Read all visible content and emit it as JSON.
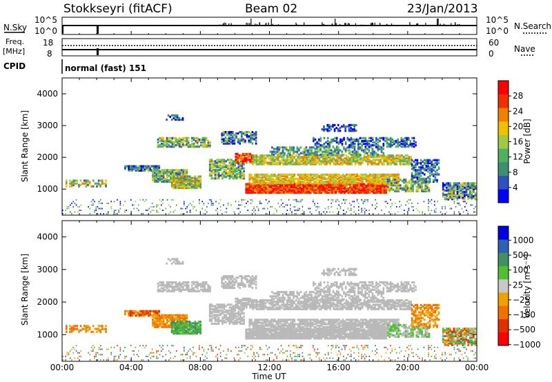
{
  "header": {
    "station": "Stokkseyri (fitACF)",
    "beam": "Beam 02",
    "date": "23/Jan/2013"
  },
  "strips": {
    "nsky_label": "N.Sky",
    "nsky_top": "10^5",
    "nsky_bottom": "10^0",
    "nsearch_label": "N.Search",
    "nsearch_top": "10^5",
    "nsearch_bottom": "10^0",
    "freq_label_1": "Freq.",
    "freq_label_2": "[MHz]",
    "freq_top": "18",
    "freq_bottom": "8",
    "nave_label": "Nave",
    "nave_top": "60",
    "nave_bottom": "0",
    "cpid_label": "CPID",
    "cpid_text": "normal (fast) 151"
  },
  "colors": {
    "power_scale": [
      "#0000ff",
      "#3050c0",
      "#3c9070",
      "#50b060",
      "#a0c840",
      "#f0c000",
      "#f08000",
      "#f03000",
      "#ff0000"
    ],
    "velocity_scale": [
      "#ff0000",
      "#e03000",
      "#f07000",
      "#f0a000",
      "#c8c8c8",
      "#50c030",
      "#409060",
      "#3060b0",
      "#0000e0"
    ],
    "ground_scatter": "#b8b8b8"
  },
  "chart_data": [
    {
      "type": "heatmap",
      "quantity": "power",
      "xlabel": "",
      "ylabel": "Slant Range [km]",
      "ylim": [
        180,
        4500
      ],
      "xlim": [
        0,
        24
      ],
      "y_ticks": [
        "1000",
        "2000",
        "3000",
        "4000"
      ],
      "colorbar_label": "Power [dB]",
      "colorbar_ticks": [
        "4",
        "8",
        "12",
        "16",
        "20",
        "24",
        "28"
      ],
      "colorbar_range": [
        0,
        32
      ]
    },
    {
      "type": "heatmap",
      "quantity": "velocity",
      "xlabel": "Time UT",
      "ylabel": "Slant Range [km]",
      "ylim": [
        180,
        4500
      ],
      "xlim": [
        0,
        24
      ],
      "x_ticks": [
        "00:00",
        "04:00",
        "08:00",
        "12:00",
        "16:00",
        "20:00",
        "00:00"
      ],
      "y_ticks": [
        "1000",
        "2000",
        "3000",
        "4000"
      ],
      "colorbar_label": "Velocity [m s⁻¹]",
      "colorbar_ticks": [
        "1000",
        "500",
        "100",
        "25",
        "−25",
        "−100",
        "−500",
        "−1000"
      ]
    }
  ]
}
